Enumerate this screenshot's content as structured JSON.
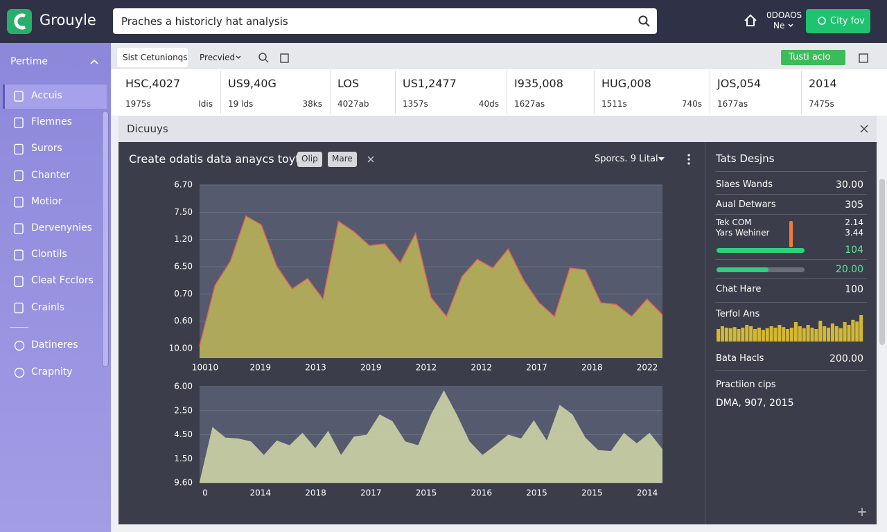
{
  "header": {
    "brand": "Grouyle",
    "search": "Praches a historicly hat analysis",
    "user": "0DOAOS",
    "user_sub": "Ne",
    "button": "City fov"
  },
  "sidebar": {
    "title": "Pertime",
    "items": [
      "Accuis",
      "Flemnes",
      "Surors",
      "Chanter",
      "Motior",
      "Dervenynies",
      "Clontils",
      "Cleat Fcclors",
      "Crainls"
    ],
    "items_bottom": [
      "Datineres",
      "Crapnity"
    ]
  },
  "toolbar": {
    "tab": "Sist Cetunionqs",
    "dropdown": "Precvied",
    "button": "Tusti aclo"
  },
  "stats": [
    {
      "value": "HSC,4027",
      "labels": [
        "1975s",
        "Idis"
      ]
    },
    {
      "value": "US9,40G",
      "labels": [
        "19 lds",
        "38ks"
      ]
    },
    {
      "value": "LOS",
      "labels": [
        "4027ab"
      ]
    },
    {
      "value": "US1,2477",
      "labels": [
        "1357s",
        "40ds"
      ]
    },
    {
      "value": "I935,008",
      "labels": [
        "1627as"
      ]
    },
    {
      "value": "HUG,008",
      "labels": [
        "1511s",
        "740s"
      ]
    },
    {
      "value": "JOS,054",
      "labels": [
        "1677as"
      ]
    },
    {
      "value": "2014",
      "labels": [
        "7475s"
      ]
    }
  ],
  "panel": {
    "title": "Dicuuys",
    "heading": "Create odatis data anaycs toyt",
    "chips": [
      "Olip",
      "Mare"
    ],
    "sort": "Sporcs. 9 Lital"
  },
  "charts": [
    {
      "type": "area",
      "color": "#b3ae58",
      "line_color": "#e0645c",
      "ylim": [
        0,
        100
      ],
      "y_labels": [
        "6.70",
        "7.50",
        "1.20",
        "6.50",
        "0.70",
        "0.60",
        "10.00"
      ],
      "x_labels": [
        "10010",
        "2019",
        "2013",
        "2019",
        "2012",
        "2012",
        "2017",
        "2018",
        "2022"
      ],
      "values": [
        7,
        42,
        56,
        82,
        77,
        53,
        40,
        46,
        34,
        79,
        73,
        65,
        66,
        55,
        72,
        35,
        24,
        47,
        57,
        52,
        63,
        45,
        32,
        24,
        52,
        51,
        32,
        31,
        24,
        34,
        25
      ]
    },
    {
      "type": "area",
      "color": "#c6cca2",
      "ylim": [
        0,
        100
      ],
      "y_labels": [
        "6.00",
        "2.50",
        "4.50",
        "1.50",
        "9.60"
      ],
      "x_labels": [
        "0",
        "2014",
        "2018",
        "2017",
        "2015",
        "2016",
        "2015",
        "2015",
        "2014"
      ],
      "values": [
        1,
        58,
        47,
        46,
        43,
        29,
        44,
        39,
        52,
        36,
        54,
        29,
        48,
        50,
        71,
        64,
        43,
        39,
        71,
        96,
        71,
        43,
        29,
        39,
        50,
        46,
        65,
        44,
        81,
        71,
        47,
        34,
        33,
        52,
        41,
        52,
        35
      ]
    }
  ],
  "side": {
    "title": "Tats Desjns",
    "rows": [
      {
        "label": "Slaes Wands",
        "value": "30.00"
      },
      {
        "label": "Aual Detwars",
        "value": "305"
      }
    ],
    "compare": {
      "labels": [
        "Tek COM",
        "Yars Wehiner"
      ],
      "values": [
        "2.14",
        "3.44"
      ]
    },
    "progress": [
      "104",
      "20.00"
    ],
    "rows2": [
      {
        "label": "Chat Hare",
        "value": "100"
      }
    ],
    "mini": {
      "label": "Terfol Ans",
      "color": "#d4b834",
      "ylim": [
        0,
        100
      ],
      "values": [
        45,
        55,
        50,
        48,
        52,
        45,
        50,
        60,
        55,
        45,
        50,
        42,
        48,
        55,
        50,
        60,
        52,
        45,
        50,
        70,
        55,
        48,
        60,
        50,
        45,
        75,
        55,
        50,
        65,
        55,
        48,
        70,
        60,
        78,
        72,
        95
      ]
    },
    "rows3": [
      {
        "label": "Bata Hacls",
        "value": "200.00"
      }
    ],
    "footer": {
      "label": "Practiion cips",
      "value": "DMA, 907, 2015"
    }
  }
}
